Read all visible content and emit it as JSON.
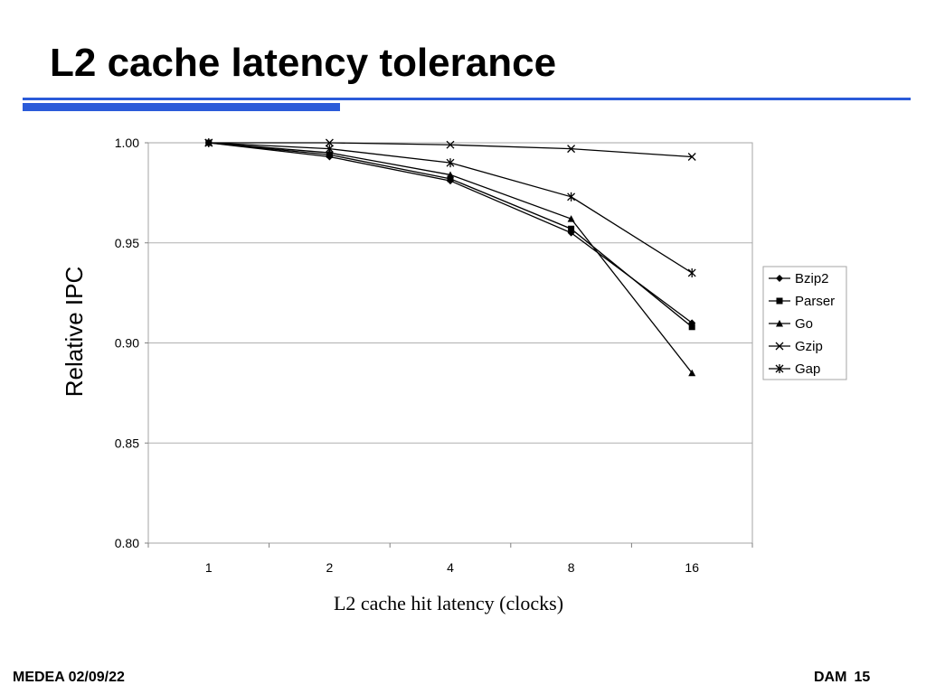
{
  "slide": {
    "title": "L2 cache latency tolerance",
    "footer_left": "MEDEA 02/09/22",
    "footer_author": "DAM",
    "footer_page": "15",
    "accent_color": "#2b5bd9"
  },
  "chart_data": {
    "type": "line",
    "xlabel": "L2 cache hit latency (clocks)",
    "ylabel": "Relative IPC",
    "categories": [
      "1",
      "2",
      "4",
      "8",
      "16"
    ],
    "ylim": [
      0.8,
      1.0
    ],
    "yticks": [
      "0.80",
      "0.85",
      "0.90",
      "0.95",
      "1.00"
    ],
    "grid": true,
    "legend_position": "right",
    "series": [
      {
        "name": "Bzip2",
        "marker": "diamond",
        "values": [
          1.0,
          0.993,
          0.981,
          0.955,
          0.91
        ]
      },
      {
        "name": "Parser",
        "marker": "square",
        "values": [
          1.0,
          0.994,
          0.982,
          0.957,
          0.908
        ]
      },
      {
        "name": "Go",
        "marker": "triangle",
        "values": [
          1.0,
          0.995,
          0.984,
          0.962,
          0.885
        ]
      },
      {
        "name": "Gzip",
        "marker": "x",
        "values": [
          1.0,
          1.0,
          0.999,
          0.997,
          0.993
        ]
      },
      {
        "name": "Gap",
        "marker": "asterisk",
        "values": [
          1.0,
          0.997,
          0.99,
          0.973,
          0.935
        ]
      }
    ]
  }
}
